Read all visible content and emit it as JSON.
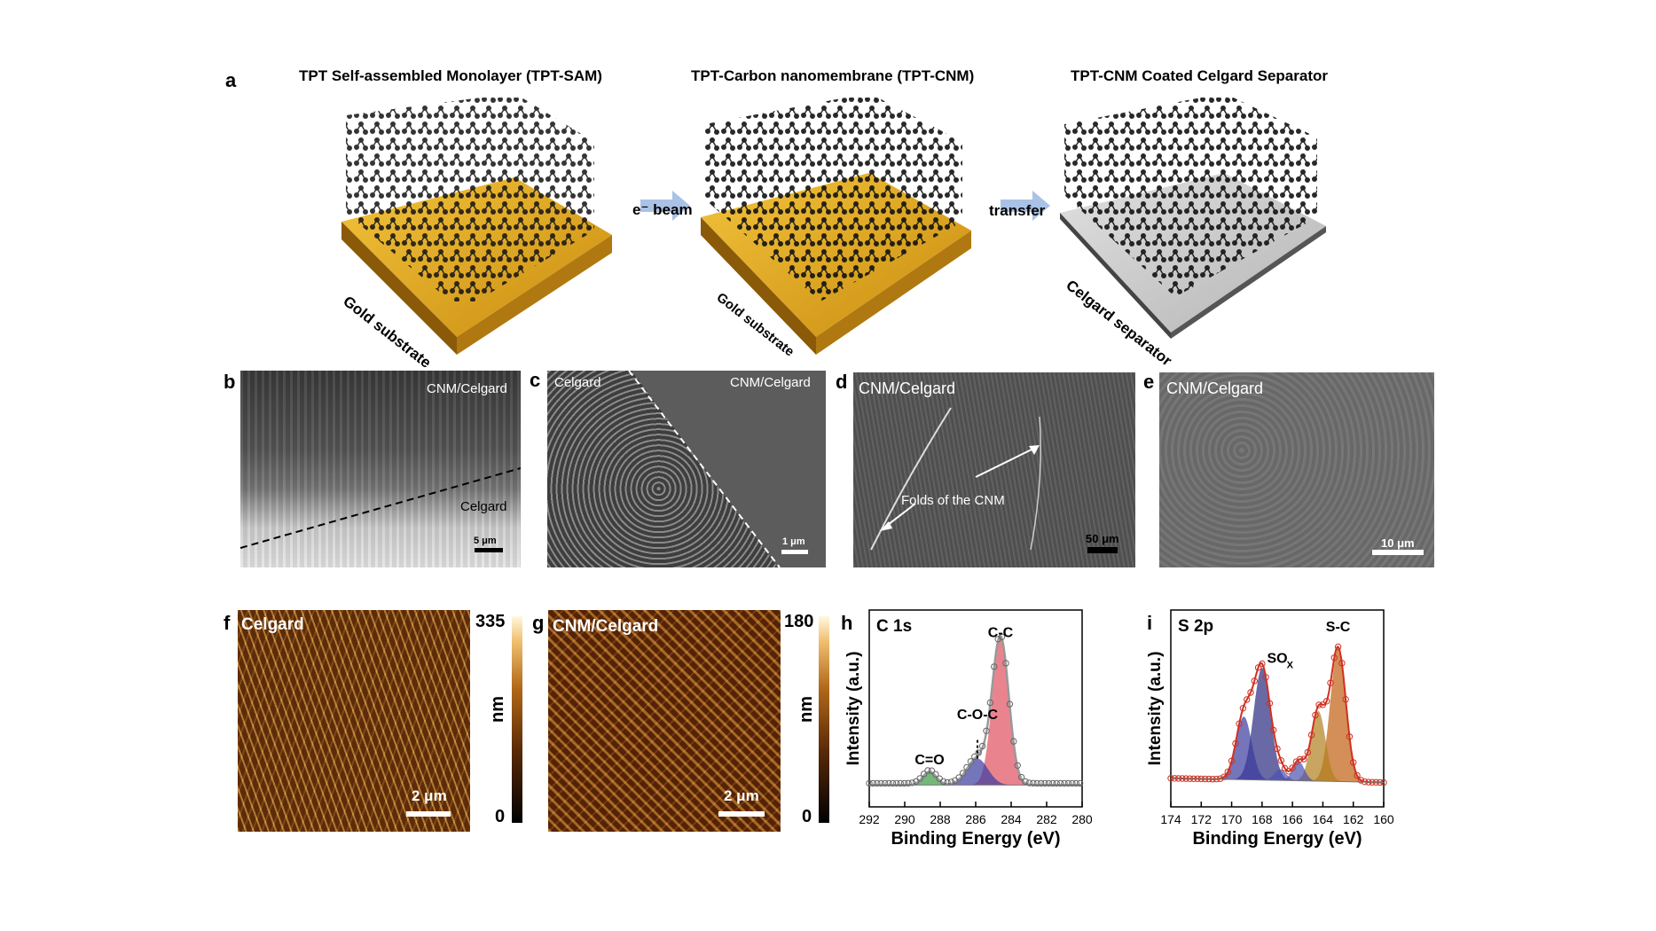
{
  "panel_a": {
    "label": "a",
    "titles": [
      "TPT Self-assembled Monolayer (TPT-SAM)",
      "TPT-Carbon nanomembrane (TPT-CNM)",
      "TPT-CNM Coated Celgard Separator"
    ],
    "arrow1": "e⁻ beam",
    "arrow2": "transfer",
    "substrate1": "Gold substrate",
    "substrate2": "Gold substrate",
    "substrate3": "Celgard separator"
  },
  "sem": {
    "b": {
      "label": "b",
      "top": "CNM/Celgard",
      "bottom": "Celgard",
      "scale": "5 μm"
    },
    "c": {
      "label": "c",
      "left": "Celgard",
      "right": "CNM/Celgard",
      "scale": "1 μm"
    },
    "d": {
      "label": "d",
      "title": "CNM/Celgard",
      "annotation": "Folds of the CNM",
      "scale": "50 μm"
    },
    "e": {
      "label": "e",
      "title": "CNM/Celgard",
      "scale": "10 μm"
    }
  },
  "afm": {
    "f": {
      "label": "f",
      "title": "Celgard",
      "scale": "2 μm",
      "cbar_max": "335",
      "cbar_min": "0",
      "unit": "nm"
    },
    "g": {
      "label": "g",
      "title": "CNM/Celgard",
      "scale": "2 μm",
      "cbar_max": "180",
      "cbar_min": "0",
      "unit": "nm"
    }
  },
  "chart_data": [
    {
      "type": "line",
      "panel": "h",
      "title": "C 1s",
      "xlabel": "Binding Energy (eV)",
      "ylabel": "Intensity (a.u.)",
      "xlim": [
        292,
        280
      ],
      "xticks": [
        292,
        290,
        288,
        286,
        284,
        282,
        280
      ],
      "peaks": [
        {
          "name": "C-C",
          "center": 284.6,
          "height": 1.0,
          "fwhm": 1.1,
          "color": "#e05060"
        },
        {
          "name": "C-O-C",
          "center": 285.9,
          "height": 0.18,
          "fwhm": 1.4,
          "color": "#3a3aa0"
        },
        {
          "name": "C=O",
          "center": 288.6,
          "height": 0.09,
          "fwhm": 0.9,
          "color": "#3a9a40"
        }
      ]
    },
    {
      "type": "line",
      "panel": "i",
      "title": "S 2p",
      "xlabel": "Binding Energy (eV)",
      "ylabel": "Intensity (a.u.)",
      "xlim": [
        174,
        160
      ],
      "xticks": [
        174,
        172,
        170,
        168,
        166,
        164,
        162,
        160
      ],
      "peaks": [
        {
          "name": "S-C",
          "center": 163.0,
          "height": 0.95,
          "fwhm": 1.2,
          "color": "#c06010"
        },
        {
          "name": "",
          "center": 164.3,
          "height": 0.5,
          "fwhm": 1.1,
          "color": "#b08020"
        },
        {
          "name": "SOₓ",
          "center": 168.0,
          "height": 0.8,
          "fwhm": 1.3,
          "color": "#2a2a80"
        },
        {
          "name": "",
          "center": 169.2,
          "height": 0.45,
          "fwhm": 1.2,
          "color": "#3a3aa0"
        },
        {
          "name": "",
          "center": 166.8,
          "height": 0.08,
          "fwhm": 0.9,
          "color": "#4a50b0"
        },
        {
          "name": "",
          "center": 165.6,
          "height": 0.14,
          "fwhm": 0.9,
          "color": "#4a50b0"
        }
      ],
      "annotations": [
        "S-C",
        "SOx"
      ]
    }
  ]
}
